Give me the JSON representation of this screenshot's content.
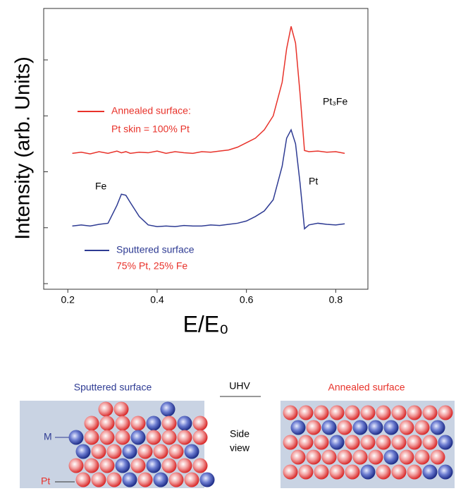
{
  "chart_data": {
    "type": "line",
    "y_label": "Intensity (arb. Units)",
    "x_label": "E/E₀",
    "x": [
      0.21,
      0.23,
      0.25,
      0.27,
      0.29,
      0.31,
      0.32,
      0.33,
      0.34,
      0.36,
      0.38,
      0.4,
      0.42,
      0.44,
      0.46,
      0.48,
      0.5,
      0.52,
      0.54,
      0.56,
      0.58,
      0.6,
      0.62,
      0.64,
      0.66,
      0.68,
      0.69,
      0.7,
      0.71,
      0.72,
      0.73,
      0.74,
      0.76,
      0.78,
      0.8,
      0.82
    ],
    "series": [
      {
        "name": "Annealed surface:",
        "note": "Pt skin = 100% Pt",
        "color": "#e8322a",
        "values": [
          2.33,
          2.35,
          2.32,
          2.36,
          2.33,
          2.37,
          2.34,
          2.36,
          2.33,
          2.35,
          2.34,
          2.37,
          2.33,
          2.36,
          2.34,
          2.33,
          2.36,
          2.35,
          2.37,
          2.39,
          2.44,
          2.52,
          2.6,
          2.75,
          3.0,
          3.6,
          4.2,
          4.6,
          4.3,
          3.4,
          2.38,
          2.36,
          2.37,
          2.35,
          2.36,
          2.33
        ]
      },
      {
        "name": "Sputtered surface",
        "note": "75% Pt, 25% Fe",
        "color": "#2e3b93",
        "values": [
          1.03,
          1.05,
          1.03,
          1.06,
          1.08,
          1.4,
          1.6,
          1.58,
          1.45,
          1.2,
          1.05,
          1.02,
          1.03,
          1.02,
          1.04,
          1.03,
          1.03,
          1.05,
          1.04,
          1.06,
          1.08,
          1.12,
          1.2,
          1.3,
          1.5,
          2.1,
          2.6,
          2.75,
          2.5,
          1.8,
          0.98,
          1.05,
          1.08,
          1.06,
          1.05,
          1.07
        ]
      }
    ],
    "annotations": [
      "Pt₃Fe",
      "Pt",
      "Fe"
    ],
    "xlim": [
      0.146,
      0.872
    ],
    "xticks": [
      0.2,
      0.4,
      0.6,
      0.8
    ],
    "ylim": [
      -0.1,
      4.92
    ],
    "yticks": [
      0,
      1,
      2,
      3,
      4
    ]
  },
  "diagram": {
    "left_title": "Sputtered surface",
    "middle_title": "UHV",
    "middle_text": [
      "Side",
      "view"
    ],
    "right_title": "Annealed surface",
    "labels": [
      "M",
      "Pt"
    ]
  }
}
